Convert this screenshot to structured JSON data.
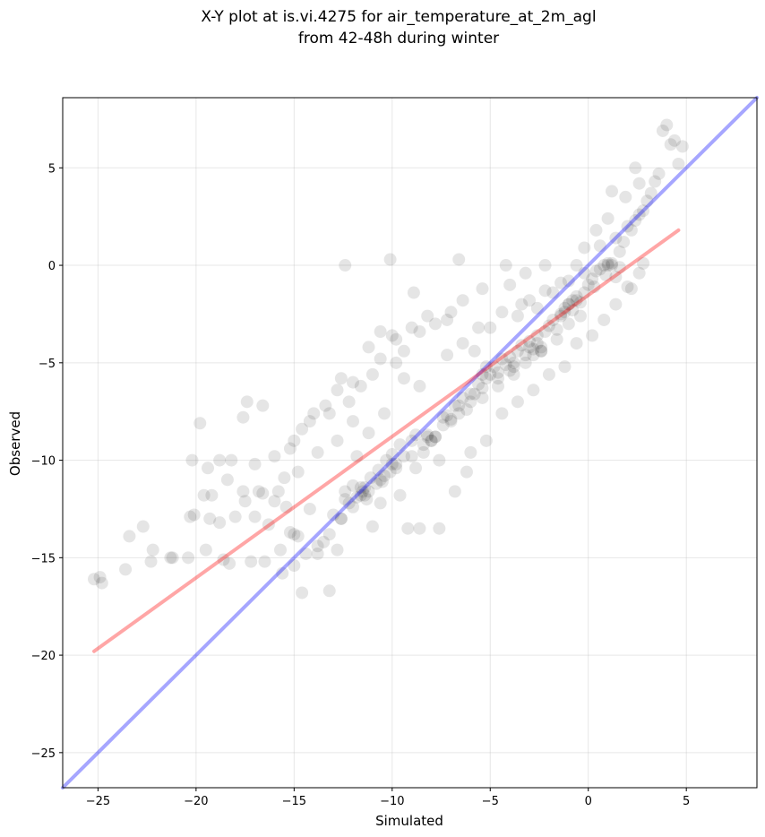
{
  "chart_data": {
    "type": "scatter",
    "title": "X-Y plot at is.vi.4275 for air_temperature_at_2m_agl",
    "subtitle": "from 42-48h during winter",
    "xlabel": "Simulated",
    "ylabel": "Observed",
    "xlim": [
      -26.8,
      8.6
    ],
    "ylim": [
      -26.8,
      8.6
    ],
    "xticks": [
      -25,
      -20,
      -15,
      -10,
      -5,
      0,
      5
    ],
    "yticks": [
      -25,
      -20,
      -15,
      -10,
      -5,
      0,
      5
    ],
    "xtick_labels": [
      "−25",
      "−20",
      "−15",
      "−10",
      "−5",
      "0",
      "5"
    ],
    "ytick_labels": [
      "−25",
      "−20",
      "−15",
      "−10",
      "−5",
      "0",
      "5"
    ],
    "grid": true,
    "point_color": "#000000",
    "point_alpha": 0.1,
    "points": [
      [
        -25.2,
        -16.1
      ],
      [
        -24.8,
        -16.3
      ],
      [
        -24.9,
        -16.0
      ],
      [
        -23.6,
        -15.6
      ],
      [
        -23.4,
        -13.9
      ],
      [
        -22.7,
        -13.4
      ],
      [
        -22.2,
        -14.6
      ],
      [
        -22.3,
        -15.2
      ],
      [
        -21.3,
        -15.0
      ],
      [
        -21.2,
        -15.0
      ],
      [
        -20.4,
        -15.0
      ],
      [
        -20.3,
        -12.9
      ],
      [
        -20.1,
        -12.8
      ],
      [
        -19.5,
        -14.6
      ],
      [
        -19.3,
        -13.0
      ],
      [
        -19.2,
        -11.8
      ],
      [
        -18.8,
        -13.2
      ],
      [
        -18.6,
        -15.1
      ],
      [
        -18.3,
        -15.3
      ],
      [
        -18.0,
        -12.9
      ],
      [
        -17.6,
        -11.6
      ],
      [
        -17.5,
        -12.1
      ],
      [
        -17.2,
        -15.2
      ],
      [
        -17.0,
        -12.9
      ],
      [
        -16.8,
        -11.6
      ],
      [
        -16.6,
        -11.7
      ],
      [
        -16.5,
        -15.2
      ],
      [
        -16.3,
        -13.3
      ],
      [
        -16.0,
        -12.1
      ],
      [
        -15.7,
        -14.6
      ],
      [
        -15.5,
        -10.9
      ],
      [
        -15.4,
        -12.4
      ],
      [
        -15.2,
        -13.7
      ],
      [
        -15.0,
        -13.8
      ],
      [
        -14.8,
        -13.9
      ],
      [
        -14.6,
        -16.8
      ],
      [
        -14.2,
        -12.5
      ],
      [
        -13.8,
        -14.8
      ],
      [
        -13.5,
        -14.2
      ],
      [
        -13.2,
        -16.7
      ],
      [
        -13.0,
        -12.8
      ],
      [
        -12.8,
        -14.6
      ],
      [
        -12.6,
        -13.0
      ],
      [
        -12.4,
        -11.6
      ],
      [
        -12.2,
        -12.2
      ],
      [
        -12.0,
        -11.3
      ],
      [
        -11.8,
        -11.9
      ],
      [
        -11.6,
        -11.4
      ],
      [
        -11.5,
        -11.6
      ],
      [
        -11.3,
        -12.0
      ],
      [
        -11.1,
        -10.9
      ],
      [
        -11.0,
        -13.4
      ],
      [
        -10.8,
        -11.2
      ],
      [
        -10.7,
        -10.5
      ],
      [
        -10.5,
        -11.1
      ],
      [
        -10.3,
        -10.0
      ],
      [
        -10.1,
        -10.6
      ],
      [
        -10.0,
        -9.7
      ],
      [
        -9.8,
        -10.2
      ],
      [
        -9.6,
        -9.2
      ],
      [
        -9.4,
        -9.8
      ],
      [
        -9.2,
        -13.5
      ],
      [
        -9.0,
        -9.0
      ],
      [
        -8.8,
        -8.7
      ],
      [
        -8.6,
        -13.5
      ],
      [
        -8.4,
        -9.6
      ],
      [
        -8.2,
        -8.7
      ],
      [
        -8.0,
        -9.0
      ],
      [
        -7.8,
        -8.8
      ],
      [
        -7.6,
        -13.5
      ],
      [
        -7.4,
        -8.2
      ],
      [
        -7.2,
        -7.7
      ],
      [
        -7.0,
        -7.9
      ],
      [
        -6.8,
        -7.2
      ],
      [
        -6.6,
        -7.6
      ],
      [
        -6.4,
        -6.8
      ],
      [
        -6.2,
        -10.6
      ],
      [
        -6.0,
        -7.0
      ],
      [
        -5.8,
        -6.6
      ],
      [
        -5.6,
        -6.1
      ],
      [
        -5.4,
        -6.3
      ],
      [
        -5.2,
        -5.8
      ],
      [
        -5.0,
        -5.6
      ],
      [
        -4.8,
        -5.2
      ],
      [
        -4.6,
        -5.5
      ],
      [
        -4.4,
        -4.8
      ],
      [
        -4.2,
        -5.1
      ],
      [
        -4.0,
        -4.7
      ],
      [
        -3.8,
        -5.2
      ],
      [
        -3.6,
        -4.4
      ],
      [
        -3.4,
        -4.1
      ],
      [
        -3.2,
        -4.6
      ],
      [
        -3.0,
        -3.9
      ],
      [
        -2.8,
        -4.3
      ],
      [
        -2.6,
        -3.6
      ],
      [
        -2.4,
        -4.2
      ],
      [
        -2.2,
        -3.4
      ],
      [
        -2.0,
        -3.1
      ],
      [
        -1.8,
        -2.8
      ],
      [
        -1.6,
        -3.3
      ],
      [
        -1.4,
        -2.5
      ],
      [
        -1.2,
        -2.2
      ],
      [
        -1.0,
        -2.0
      ],
      [
        -0.8,
        -2.3
      ],
      [
        -0.6,
        -1.6
      ],
      [
        -0.4,
        -1.9
      ],
      [
        -0.2,
        -1.4
      ],
      [
        0.0,
        -1.0
      ],
      [
        0.2,
        -0.7
      ],
      [
        0.4,
        -0.3
      ],
      [
        0.6,
        -0.2
      ],
      [
        0.8,
        0.0
      ],
      [
        1.0,
        0.1
      ],
      [
        1.2,
        0.0
      ],
      [
        1.4,
        -0.6
      ],
      [
        1.6,
        0.7
      ],
      [
        1.8,
        1.2
      ],
      [
        2.0,
        -1.1
      ],
      [
        2.2,
        1.8
      ],
      [
        2.4,
        2.3
      ],
      [
        2.6,
        -0.4
      ],
      [
        2.8,
        2.8
      ],
      [
        3.0,
        3.3
      ],
      [
        3.2,
        3.7
      ],
      [
        3.4,
        4.3
      ],
      [
        3.6,
        4.7
      ],
      [
        3.8,
        6.9
      ],
      [
        4.0,
        7.2
      ],
      [
        4.2,
        6.2
      ],
      [
        4.4,
        6.4
      ],
      [
        4.6,
        5.2
      ],
      [
        4.8,
        6.1
      ],
      [
        2.4,
        5.0
      ],
      [
        2.6,
        4.2
      ],
      [
        1.9,
        3.5
      ],
      [
        1.2,
        3.8
      ],
      [
        1.0,
        2.4
      ],
      [
        0.4,
        1.8
      ],
      [
        -0.2,
        0.9
      ],
      [
        -0.6,
        0.0
      ],
      [
        -1.4,
        -0.9
      ],
      [
        -2.2,
        -1.3
      ],
      [
        -3.0,
        -1.8
      ],
      [
        -3.6,
        -2.6
      ],
      [
        -4.0,
        -1.0
      ],
      [
        -4.4,
        -2.4
      ],
      [
        -5.0,
        -3.2
      ],
      [
        -5.8,
        -4.4
      ],
      [
        -6.6,
        0.3
      ],
      [
        -7.0,
        -2.4
      ],
      [
        -7.8,
        -3.0
      ],
      [
        -8.6,
        -3.4
      ],
      [
        -9.4,
        -4.4
      ],
      [
        -10.0,
        -3.6
      ],
      [
        -10.6,
        -4.8
      ],
      [
        -11.0,
        -5.6
      ],
      [
        -11.6,
        -6.2
      ],
      [
        -12.2,
        -7.0
      ],
      [
        -12.4,
        0.0
      ],
      [
        -10.1,
        0.3
      ],
      [
        -8.9,
        -1.4
      ],
      [
        -9.8,
        -5.0
      ],
      [
        -10.4,
        -7.6
      ],
      [
        -11.2,
        -8.6
      ],
      [
        -12.0,
        -8.0
      ],
      [
        -12.8,
        -6.4
      ],
      [
        -13.4,
        -7.2
      ],
      [
        -14.0,
        -7.6
      ],
      [
        -14.6,
        -8.4
      ],
      [
        -15.2,
        -9.4
      ],
      [
        -16.0,
        -9.8
      ],
      [
        -16.6,
        -7.2
      ],
      [
        -17.4,
        -7.0
      ],
      [
        -17.6,
        -7.8
      ],
      [
        -18.2,
        -10.0
      ],
      [
        -18.8,
        -10.0
      ],
      [
        -19.4,
        -10.4
      ],
      [
        -19.8,
        -8.1
      ],
      [
        -20.2,
        -10.0
      ],
      [
        -19.6,
        -11.8
      ],
      [
        -18.4,
        -11.0
      ],
      [
        -17.0,
        -10.2
      ],
      [
        -15.8,
        -11.6
      ],
      [
        -14.8,
        -10.6
      ],
      [
        -13.8,
        -9.6
      ],
      [
        -12.8,
        -9.0
      ],
      [
        -11.8,
        -9.8
      ],
      [
        -10.6,
        -12.2
      ],
      [
        -9.6,
        -11.8
      ],
      [
        -8.8,
        -10.4
      ],
      [
        -7.6,
        -10.0
      ],
      [
        -6.8,
        -11.6
      ],
      [
        -6.0,
        -9.6
      ],
      [
        -5.2,
        -9.0
      ],
      [
        -4.4,
        -7.6
      ],
      [
        -3.6,
        -7.0
      ],
      [
        -2.8,
        -6.4
      ],
      [
        -2.0,
        -5.6
      ],
      [
        -1.2,
        -5.2
      ],
      [
        -0.6,
        -4.0
      ],
      [
        0.2,
        -3.6
      ],
      [
        0.8,
        -2.8
      ],
      [
        1.4,
        -2.0
      ],
      [
        2.2,
        -1.2
      ],
      [
        2.8,
        0.1
      ],
      [
        1.6,
        -0.1
      ],
      [
        0.9,
        -0.5
      ],
      [
        0.3,
        -1.1
      ],
      [
        -0.4,
        -2.6
      ],
      [
        -1.0,
        -3.0
      ],
      [
        -1.6,
        -3.8
      ],
      [
        -2.4,
        -4.4
      ],
      [
        -3.2,
        -5.0
      ],
      [
        -3.8,
        -5.6
      ],
      [
        -4.6,
        -6.2
      ],
      [
        -5.4,
        -6.8
      ],
      [
        -6.2,
        -7.4
      ],
      [
        -7.0,
        -8.0
      ],
      [
        -7.8,
        -8.8
      ],
      [
        -8.4,
        -9.2
      ],
      [
        -9.0,
        -9.8
      ],
      [
        -9.8,
        -10.4
      ],
      [
        -10.6,
        -11.0
      ],
      [
        -11.4,
        -11.8
      ],
      [
        -12.0,
        -12.4
      ],
      [
        -12.6,
        -13.0
      ],
      [
        -13.2,
        -13.8
      ],
      [
        -13.8,
        -14.4
      ],
      [
        -14.4,
        -14.8
      ],
      [
        -15.0,
        -15.4
      ],
      [
        -15.6,
        -15.8
      ],
      [
        -3.4,
        -2.0
      ],
      [
        -2.6,
        -2.2
      ],
      [
        -1.8,
        -1.4
      ],
      [
        -1.0,
        -0.8
      ],
      [
        -0.2,
        -0.4
      ],
      [
        0.6,
        1.0
      ],
      [
        1.4,
        1.4
      ],
      [
        2.0,
        2.0
      ],
      [
        2.6,
        2.6
      ],
      [
        -4.2,
        0.0
      ],
      [
        -3.2,
        -0.4
      ],
      [
        -2.2,
        0.0
      ],
      [
        -5.4,
        -1.2
      ],
      [
        -6.4,
        -1.8
      ],
      [
        -7.2,
        -2.8
      ],
      [
        -8.2,
        -2.6
      ],
      [
        -9.0,
        -3.2
      ],
      [
        -9.8,
        -3.8
      ],
      [
        -10.6,
        -3.4
      ],
      [
        -11.2,
        -4.2
      ],
      [
        -12.0,
        -6.0
      ],
      [
        -12.6,
        -5.8
      ],
      [
        -13.2,
        -7.6
      ],
      [
        -14.2,
        -8.0
      ],
      [
        -15.0,
        -9.0
      ],
      [
        -1.0,
        -2.0
      ],
      [
        -0.8,
        -1.8
      ],
      [
        -1.2,
        -2.4
      ],
      [
        -2.6,
        -4.0
      ],
      [
        -2.4,
        -4.4
      ],
      [
        -2.8,
        -4.6
      ],
      [
        -3.8,
        -5.0
      ],
      [
        -4.0,
        -5.4
      ],
      [
        -11.4,
        -11.4
      ],
      [
        -11.6,
        -11.8
      ],
      [
        -11.2,
        -11.6
      ],
      [
        -8.0,
        -9.0
      ],
      [
        -8.2,
        -8.8
      ],
      [
        -5.4,
        -5.6
      ],
      [
        -5.2,
        -5.2
      ],
      [
        1.0,
        0.0
      ],
      [
        1.2,
        0.1
      ],
      [
        -0.6,
        -1.8
      ],
      [
        -1.4,
        -2.6
      ],
      [
        -3.0,
        -4.2
      ],
      [
        -4.6,
        -5.8
      ],
      [
        -6.0,
        -6.6
      ],
      [
        -6.6,
        -7.2
      ],
      [
        -7.4,
        -7.8
      ],
      [
        -10.0,
        -10.2
      ],
      [
        -10.4,
        -10.8
      ],
      [
        -12.4,
        -12.0
      ],
      [
        -9.4,
        -5.8
      ],
      [
        -8.6,
        -6.2
      ],
      [
        -7.2,
        -4.6
      ],
      [
        -6.4,
        -4.0
      ],
      [
        -5.6,
        -3.2
      ]
    ],
    "series": [
      {
        "kind": "identity",
        "color": "#0000ff",
        "opacity": 0.35,
        "x": [
          -26.8,
          8.6
        ],
        "y": [
          -26.8,
          8.6
        ]
      },
      {
        "kind": "fit",
        "color": "#ff0000",
        "opacity": 0.35,
        "x": [
          -25.2,
          4.6
        ],
        "y": [
          -19.8,
          1.8
        ]
      }
    ]
  }
}
